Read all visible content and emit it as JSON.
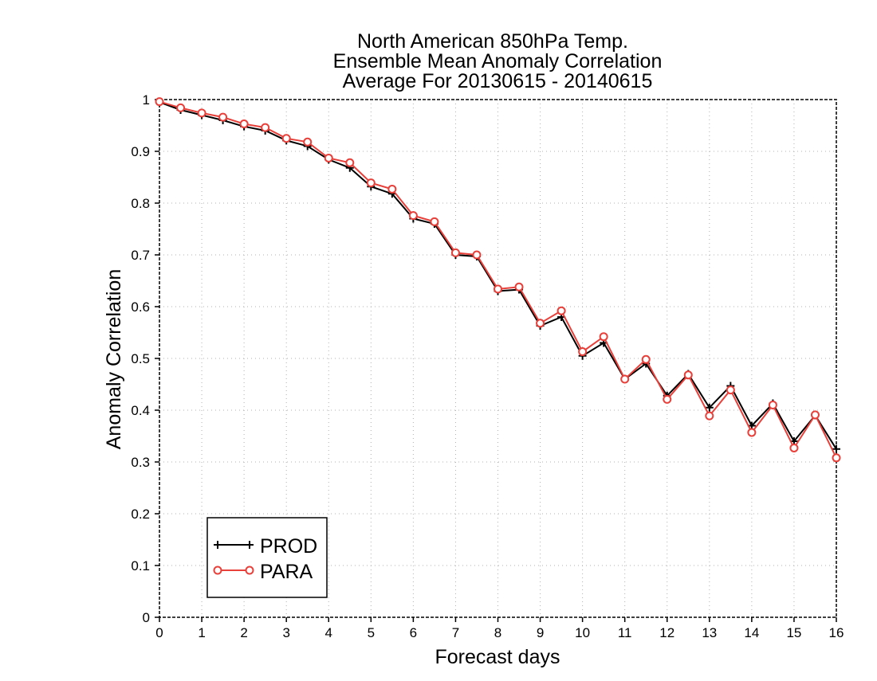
{
  "chart_data": {
    "type": "line",
    "title_lines": [
      "North American 850hPa Temp.",
      "Ensemble Mean Anomaly Correlation",
      "Average For 20130615 - 20140615"
    ],
    "xlabel": "Forecast days",
    "ylabel": "Anomaly Correlation",
    "xlim": [
      0,
      16
    ],
    "ylim": [
      0,
      1
    ],
    "x_ticks": [
      0,
      1,
      2,
      3,
      4,
      5,
      6,
      7,
      8,
      9,
      10,
      11,
      12,
      13,
      14,
      15,
      16
    ],
    "y_ticks": [
      0,
      0.1,
      0.2,
      0.3,
      0.4,
      0.5,
      0.6,
      0.7,
      0.8,
      0.9,
      1
    ],
    "y_tick_labels": [
      "0",
      "0.1",
      "0.2",
      "0.3",
      "0.4",
      "0.5",
      "0.6",
      "0.7",
      "0.8",
      "0.9",
      "1"
    ],
    "grid": true,
    "legend_position": "bottom-left",
    "x": [
      0,
      0.5,
      1,
      1.5,
      2,
      2.5,
      3,
      3.5,
      4,
      4.5,
      5,
      5.5,
      6,
      6.5,
      7,
      7.5,
      8,
      8.5,
      9,
      9.5,
      10,
      10.5,
      11,
      11.5,
      12,
      12.5,
      13,
      13.5,
      14,
      14.5,
      15,
      15.5,
      16
    ],
    "series": [
      {
        "name": "PROD",
        "color": "#000000",
        "marker": "plus",
        "values": [
          0.995,
          0.98,
          0.97,
          0.96,
          0.948,
          0.94,
          0.921,
          0.91,
          0.884,
          0.868,
          0.832,
          0.818,
          0.77,
          0.76,
          0.7,
          0.697,
          0.63,
          0.633,
          0.563,
          0.58,
          0.505,
          0.53,
          0.46,
          0.49,
          0.428,
          0.47,
          0.405,
          0.447,
          0.37,
          0.413,
          0.34,
          0.39,
          0.325
        ]
      },
      {
        "name": "PARA",
        "color": "#e8403a",
        "marker": "circle",
        "values": [
          0.996,
          0.984,
          0.974,
          0.966,
          0.953,
          0.946,
          0.925,
          0.918,
          0.887,
          0.878,
          0.839,
          0.827,
          0.776,
          0.764,
          0.704,
          0.7,
          0.634,
          0.638,
          0.568,
          0.592,
          0.513,
          0.542,
          0.46,
          0.498,
          0.421,
          0.468,
          0.389,
          0.439,
          0.357,
          0.41,
          0.327,
          0.391,
          0.308
        ]
      }
    ]
  }
}
